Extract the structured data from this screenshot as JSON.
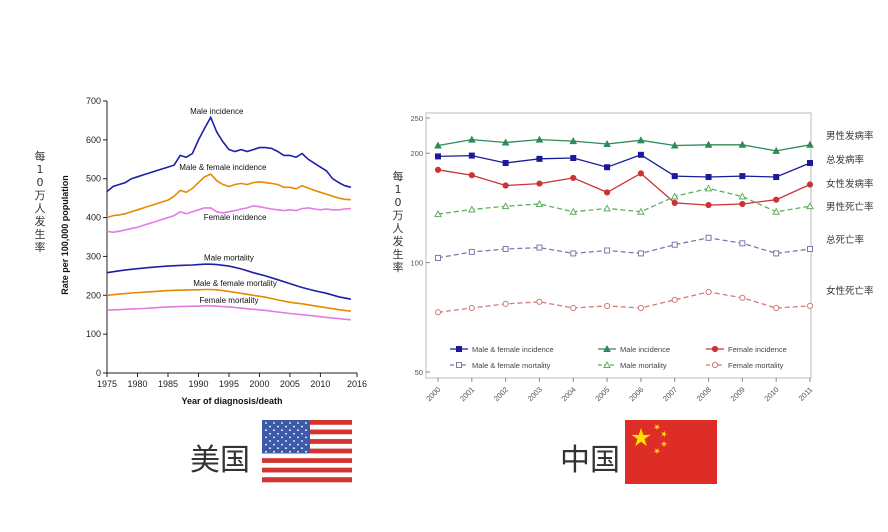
{
  "chart_data": [
    {
      "type": "line",
      "ylabel_cn": "每10万人发生率",
      "ylabel": "Rate per 100,000 population",
      "xlabel": "Year of diagnosis/death",
      "xlim": [
        1975,
        2016
      ],
      "ylim": [
        0,
        700
      ],
      "x_ticks": [
        1975,
        1980,
        1985,
        1990,
        1995,
        2000,
        2005,
        2010,
        2016
      ],
      "y_ticks": [
        0,
        100,
        200,
        300,
        400,
        500,
        600,
        700
      ],
      "colors": {
        "male": "#1f1fa6",
        "both": "#e68a00",
        "female": "#e47be4"
      },
      "series": [
        {
          "name": "Male incidence",
          "color_key": "male",
          "x": [
            1975,
            1976,
            1977,
            1978,
            1979,
            1980,
            1981,
            1982,
            1983,
            1984,
            1985,
            1986,
            1987,
            1988,
            1989,
            1990,
            1991,
            1992,
            1993,
            1994,
            1995,
            1996,
            1997,
            1998,
            1999,
            2000,
            2001,
            2002,
            2003,
            2004,
            2005,
            2006,
            2007,
            2008,
            2009,
            2010,
            2011,
            2012,
            2013,
            2014,
            2015
          ],
          "y": [
            467,
            480,
            485,
            490,
            500,
            505,
            510,
            515,
            520,
            525,
            530,
            535,
            560,
            555,
            565,
            600,
            630,
            658,
            620,
            595,
            575,
            570,
            575,
            570,
            575,
            580,
            580,
            578,
            570,
            560,
            560,
            555,
            565,
            550,
            540,
            530,
            520,
            500,
            490,
            482,
            478
          ]
        },
        {
          "name": "Male & female incidence",
          "color_key": "both",
          "x": [
            1975,
            1976,
            1977,
            1978,
            1979,
            1980,
            1981,
            1982,
            1983,
            1984,
            1985,
            1986,
            1987,
            1988,
            1989,
            1990,
            1991,
            1992,
            1993,
            1994,
            1995,
            1996,
            1997,
            1998,
            1999,
            2000,
            2001,
            2002,
            2003,
            2004,
            2005,
            2006,
            2007,
            2008,
            2009,
            2010,
            2011,
            2012,
            2013,
            2014,
            2015
          ],
          "y": [
            400,
            405,
            407,
            410,
            415,
            420,
            425,
            430,
            435,
            440,
            445,
            455,
            470,
            465,
            475,
            490,
            505,
            512,
            495,
            485,
            480,
            485,
            488,
            485,
            490,
            492,
            490,
            488,
            485,
            478,
            478,
            474,
            482,
            476,
            470,
            465,
            460,
            455,
            450,
            447,
            446
          ]
        },
        {
          "name": "Female incidence",
          "color_key": "female",
          "x": [
            1975,
            1976,
            1977,
            1978,
            1979,
            1980,
            1981,
            1982,
            1983,
            1984,
            1985,
            1986,
            1987,
            1988,
            1989,
            1990,
            1991,
            1992,
            1993,
            1994,
            1995,
            1996,
            1997,
            1998,
            1999,
            2000,
            2001,
            2002,
            2003,
            2004,
            2005,
            2006,
            2007,
            2008,
            2009,
            2010,
            2011,
            2012,
            2013,
            2014,
            2015
          ],
          "y": [
            365,
            362,
            365,
            368,
            372,
            375,
            380,
            385,
            390,
            395,
            400,
            405,
            415,
            410,
            415,
            420,
            425,
            425,
            415,
            412,
            415,
            418,
            422,
            425,
            430,
            428,
            425,
            422,
            420,
            418,
            420,
            418,
            423,
            425,
            422,
            420,
            422,
            420,
            420,
            422,
            423
          ]
        },
        {
          "name": "Male mortality",
          "color_key": "male",
          "x": [
            1975,
            1977,
            1979,
            1981,
            1983,
            1985,
            1987,
            1989,
            1990,
            1991,
            1992,
            1993,
            1995,
            1997,
            1999,
            2001,
            2003,
            2005,
            2007,
            2009,
            2011,
            2013,
            2015
          ],
          "y": [
            258,
            263,
            267,
            270,
            273,
            275,
            277,
            278,
            279,
            280,
            280,
            279,
            275,
            268,
            258,
            250,
            240,
            230,
            220,
            212,
            205,
            196,
            190
          ]
        },
        {
          "name": "Male & female mortality",
          "color_key": "both",
          "x": [
            1975,
            1977,
            1979,
            1981,
            1983,
            1985,
            1987,
            1989,
            1990,
            1991,
            1992,
            1993,
            1995,
            1997,
            1999,
            2001,
            2003,
            2005,
            2007,
            2009,
            2011,
            2013,
            2015
          ],
          "y": [
            200,
            203,
            206,
            208,
            210,
            212,
            213,
            214,
            214,
            215,
            215,
            214,
            210,
            205,
            200,
            195,
            188,
            182,
            178,
            173,
            168,
            163,
            159
          ]
        },
        {
          "name": "Female mortality",
          "color_key": "female",
          "x": [
            1975,
            1977,
            1979,
            1981,
            1983,
            1985,
            1987,
            1989,
            1990,
            1991,
            1992,
            1993,
            1995,
            1997,
            1999,
            2001,
            2003,
            2005,
            2007,
            2009,
            2011,
            2013,
            2015
          ],
          "y": [
            162,
            163,
            165,
            166,
            168,
            170,
            171,
            172,
            172,
            173,
            173,
            172,
            170,
            167,
            164,
            161,
            157,
            153,
            150,
            147,
            143,
            140,
            137
          ]
        }
      ]
    },
    {
      "type": "line",
      "ylabel_cn": "每10万人发生率",
      "log_scale": true,
      "ylim": [
        50,
        250
      ],
      "y_ticks": [
        50,
        100,
        200,
        250
      ],
      "x_ticks": [
        "2000",
        "2001",
        "2002",
        "2003",
        "2004",
        "2005",
        "2006",
        "2007",
        "2008",
        "2009",
        "2010",
        "2011"
      ],
      "colors": {
        "both": "#1a1a9a",
        "male": "#2e8b57",
        "female": "#cc3333",
        "both_mort": "#7a7ab0",
        "male_mort": "#5fae5f",
        "female_mort": "#d47a7a"
      },
      "series": [
        {
          "name": "Male incidence",
          "cn_label": "男性发病率",
          "color_key": "male",
          "marker": "triangle",
          "dashed": false,
          "y": [
            210,
            218,
            214,
            218,
            216,
            212,
            217,
            210,
            211,
            211,
            203,
            211
          ]
        },
        {
          "name": "Male & female incidence",
          "cn_label": "总发病率",
          "color_key": "both",
          "marker": "square",
          "dashed": false,
          "y": [
            196,
            197,
            188,
            193,
            194,
            183,
            198,
            173,
            172,
            173,
            172,
            188
          ]
        },
        {
          "name": "Female incidence",
          "cn_label": "女性发病率",
          "color_key": "female",
          "marker": "circle",
          "dashed": false,
          "y": [
            180,
            174,
            163,
            165,
            171,
            156,
            176,
            146,
            144,
            145,
            149,
            164
          ]
        },
        {
          "name": "Male mortality",
          "cn_label": "男性死亡率",
          "color_key": "male_mort",
          "marker": "triangle",
          "dashed": true,
          "y": [
            136,
            140,
            143,
            145,
            138,
            141,
            138,
            152,
            160,
            152,
            138,
            143
          ]
        },
        {
          "name": "Male & female mortality",
          "cn_label": "总死亡率",
          "color_key": "both_mort",
          "marker": "square",
          "dashed": true,
          "y": [
            103,
            107,
            109,
            110,
            106,
            108,
            106,
            112,
            117,
            113,
            106,
            109
          ]
        },
        {
          "name": "Female mortality",
          "cn_label": "女性死亡率",
          "color_key": "female_mort",
          "marker": "circle",
          "dashed": true,
          "y": [
            73,
            75,
            77,
            78,
            75,
            76,
            75,
            79,
            83,
            80,
            75,
            76
          ]
        }
      ],
      "legend": [
        {
          "label": "Male & female incidence",
          "key": "both",
          "marker": "square",
          "dashed": false
        },
        {
          "label": "Male incidence",
          "key": "male",
          "marker": "triangle",
          "dashed": false
        },
        {
          "label": "Female incidence",
          "key": "female",
          "marker": "circle",
          "dashed": false
        },
        {
          "label": "Male & female mortality",
          "key": "both_mort",
          "marker": "square",
          "dashed": true
        },
        {
          "label": "Male mortality",
          "key": "male_mort",
          "marker": "triangle",
          "dashed": true
        },
        {
          "label": "Female mortality",
          "key": "female_mort",
          "marker": "circle",
          "dashed": true
        }
      ]
    }
  ],
  "labels": {
    "us_country": "美国",
    "cn_country": "中国"
  },
  "flags": {
    "us": {
      "red": "#d2342f",
      "white": "#ffffff",
      "blue": "#3d5aa8",
      "star": "#ffffff"
    },
    "cn": {
      "red": "#de2c26",
      "star": "#ffde00"
    }
  }
}
